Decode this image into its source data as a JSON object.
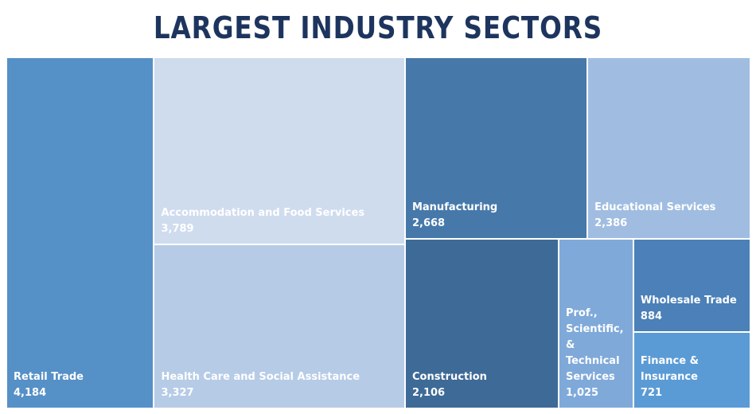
{
  "title": "LARGEST INDUSTRY SECTORS",
  "chart_data": {
    "type": "treemap",
    "title": "LARGEST INDUSTRY SECTORS",
    "items": [
      {
        "name": "Retail Trade",
        "value": 4184,
        "label": "4,184",
        "color": "#5590c6"
      },
      {
        "name": "Accommodation and Food Services",
        "value": 3789,
        "label": "3,789",
        "color": "#cfdcee"
      },
      {
        "name": "Health Care and Social Assistance",
        "value": 3327,
        "label": "3,327",
        "color": "#b6cbe6"
      },
      {
        "name": "Manufacturing",
        "value": 2668,
        "label": "2,668",
        "color": "#4679aa"
      },
      {
        "name": "Educational Services",
        "value": 2386,
        "label": "2,386",
        "color": "#a0bde1"
      },
      {
        "name": "Construction",
        "value": 2106,
        "label": "2,106",
        "color": "#3e6a97"
      },
      {
        "name": "Prof., Scientific, & Technical Services",
        "display_lines": [
          "Prof.,",
          "Scientific,",
          "& Technical",
          "Services"
        ],
        "value": 1025,
        "label": "1,025",
        "color": "#7fa9d9"
      },
      {
        "name": "Wholesale Trade",
        "value": 884,
        "label": "884",
        "color": "#4b80b8"
      },
      {
        "name": "Finance & Insurance",
        "display_lines": [
          "Finance &",
          "Insurance"
        ],
        "value": 721,
        "label": "721",
        "color": "#5b9bd5"
      }
    ]
  }
}
